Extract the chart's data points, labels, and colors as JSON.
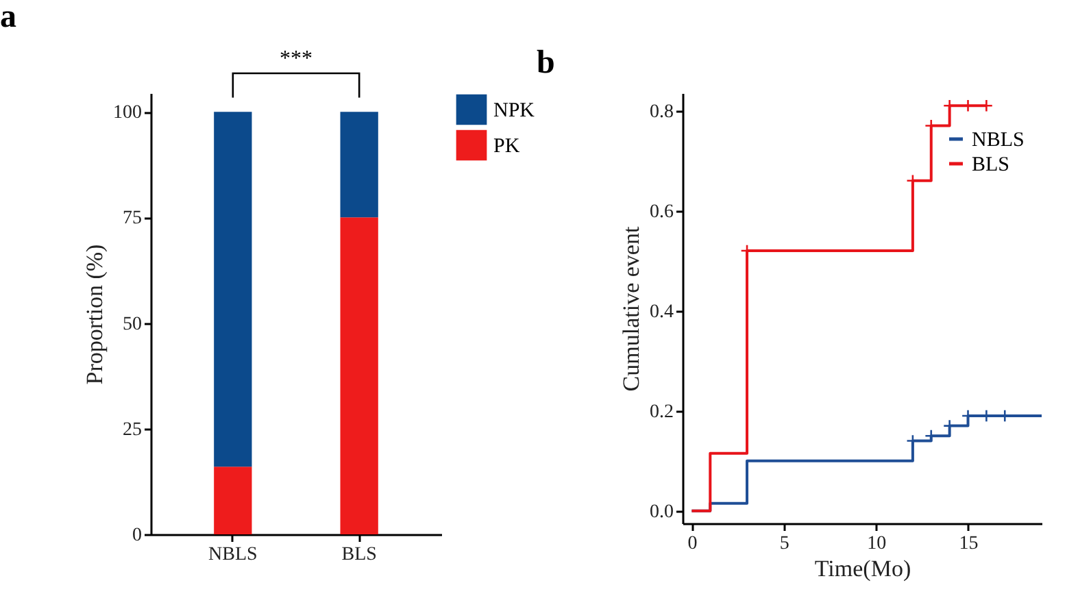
{
  "chart_data": [
    {
      "type": "bar",
      "title": "a",
      "stacked": true,
      "categories": [
        "NBLS",
        "BLS"
      ],
      "series": [
        {
          "name": "PK",
          "color": "#ee1c1c",
          "values": [
            16,
            75
          ]
        },
        {
          "name": "NPK",
          "color": "#0c4a8c",
          "values": [
            84,
            25
          ]
        }
      ],
      "ylabel": "Proportion (%)",
      "ylim": [
        0,
        104.4
      ],
      "yticks": [
        0,
        25,
        50,
        75,
        100
      ],
      "legend": "right",
      "grid": false,
      "annotations": [
        "***"
      ]
    },
    {
      "type": "step",
      "title": "b",
      "xlabel": "Time(Mo)",
      "ylabel": "Cumulative event",
      "series": [
        {
          "name": "NBLS",
          "color": "#1f4e96",
          "x": [
            0,
            1,
            3,
            12,
            13,
            14,
            15,
            19
          ],
          "values": [
            0,
            0.015,
            0.1,
            0.14,
            0.15,
            0.17,
            0.19,
            0.19
          ]
        },
        {
          "name": "BLS",
          "color": "#e8141a",
          "x": [
            0,
            1,
            3,
            12,
            13,
            14,
            16
          ],
          "values": [
            0,
            0.115,
            0.52,
            0.66,
            0.77,
            0.81,
            0.81
          ]
        },
        {
          "type": "scatter",
          "marker": "cross",
          "color": "#1f4e96",
          "x": [
            12,
            13,
            14,
            15,
            16,
            17
          ],
          "values": [
            0.14,
            0.15,
            0.17,
            0.19,
            0.19,
            0.19
          ]
        },
        {
          "type": "scatter",
          "marker": "cross",
          "color": "#e8141a",
          "x": [
            3,
            12,
            13,
            14,
            15,
            16
          ],
          "values": [
            0.52,
            0.66,
            0.77,
            0.81,
            0.81,
            0.81
          ]
        }
      ],
      "xlim": [
        -0.5,
        19
      ],
      "xticks": [
        0,
        5,
        10,
        15
      ],
      "ylim": [
        -0.025,
        0.835
      ],
      "yticks": [
        {
          "value": 0,
          "label": "0.0"
        },
        {
          "value": 0.2,
          "label": "0.2"
        },
        {
          "value": 0.4,
          "label": "0.4"
        },
        {
          "value": 0.6,
          "label": "0.6"
        },
        {
          "value": 0.8,
          "label": "0.8"
        }
      ],
      "legend": "top right",
      "grid": false
    }
  ]
}
